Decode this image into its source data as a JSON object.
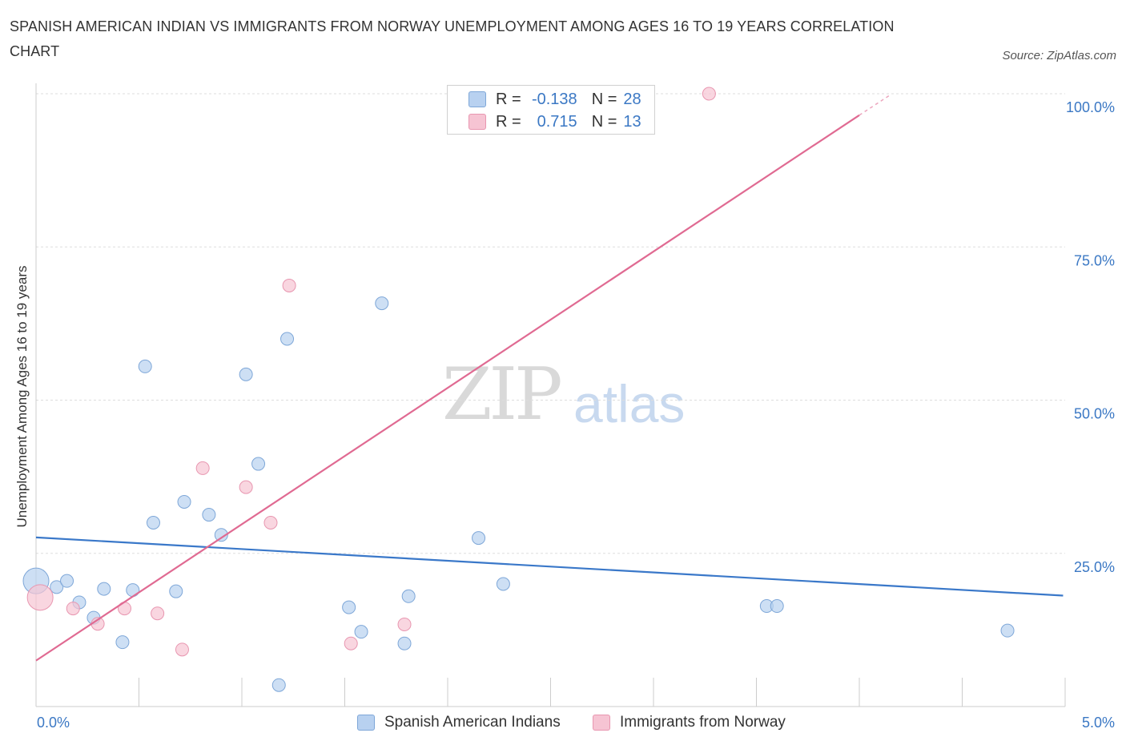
{
  "title": "SPANISH AMERICAN INDIAN VS IMMIGRANTS FROM NORWAY UNEMPLOYMENT AMONG AGES 16 TO 19 YEARS CORRELATION CHART",
  "source": "Source: ZipAtlas.com",
  "watermark": {
    "zip": "ZIP",
    "atlas": "atlas"
  },
  "legend": {
    "r_label": "R =",
    "n_label": "N =",
    "series1": {
      "r": "-0.138",
      "n": "28"
    },
    "series2": {
      "r": "0.715",
      "n": "13"
    }
  },
  "colors": {
    "blue_fill": "#b8d1f0",
    "blue_stroke": "#7ea7d8",
    "blue_line": "#3a78c9",
    "pink_fill": "#f6c4d3",
    "pink_stroke": "#e896b0",
    "pink_line": "#e06a92",
    "axis_text": "#3b78c4",
    "grid": "#dddddd"
  },
  "chart_data": {
    "type": "scatter",
    "title": "SPANISH AMERICAN INDIAN VS IMMIGRANTS FROM NORWAY UNEMPLOYMENT AMONG AGES 16 TO 19 YEARS CORRELATION CHART",
    "xlabel": "",
    "ylabel": "Unemployment Among Ages 16 to 19 years",
    "xlim": [
      0,
      5
    ],
    "ylim": [
      0,
      100
    ],
    "x_tick_labels": [
      "0.0%",
      "5.0%"
    ],
    "y_tick_labels": [
      "100.0%",
      "75.0%",
      "50.0%",
      "25.0%"
    ],
    "y_tick_values": [
      100,
      75,
      50,
      25
    ],
    "series": [
      {
        "name": "Spanish American Indians",
        "r": -0.138,
        "n": 28,
        "trend": {
          "x": [
            0,
            4.99
          ],
          "y": [
            27.6,
            18.1
          ]
        },
        "points": [
          {
            "x": 0.0,
            "y": 20.5,
            "big": true
          },
          {
            "x": 0.1,
            "y": 19.5
          },
          {
            "x": 0.15,
            "y": 20.5
          },
          {
            "x": 0.21,
            "y": 17.0
          },
          {
            "x": 0.28,
            "y": 14.5
          },
          {
            "x": 0.33,
            "y": 19.2
          },
          {
            "x": 0.42,
            "y": 10.5
          },
          {
            "x": 0.47,
            "y": 19.0
          },
          {
            "x": 0.53,
            "y": 55.5
          },
          {
            "x": 0.57,
            "y": 30.0
          },
          {
            "x": 0.68,
            "y": 18.8
          },
          {
            "x": 0.72,
            "y": 33.4
          },
          {
            "x": 0.84,
            "y": 31.3
          },
          {
            "x": 0.9,
            "y": 28.0
          },
          {
            "x": 1.02,
            "y": 54.2
          },
          {
            "x": 1.08,
            "y": 39.6
          },
          {
            "x": 1.18,
            "y": 3.5
          },
          {
            "x": 1.22,
            "y": 60.0
          },
          {
            "x": 1.52,
            "y": 16.2
          },
          {
            "x": 1.58,
            "y": 12.2
          },
          {
            "x": 1.68,
            "y": 65.8
          },
          {
            "x": 1.79,
            "y": 10.3
          },
          {
            "x": 1.81,
            "y": 18.0
          },
          {
            "x": 2.15,
            "y": 27.5
          },
          {
            "x": 2.27,
            "y": 20.0
          },
          {
            "x": 3.55,
            "y": 16.4
          },
          {
            "x": 3.6,
            "y": 16.4
          },
          {
            "x": 4.72,
            "y": 12.4
          }
        ]
      },
      {
        "name": "Immigrants from Norway",
        "r": 0.715,
        "n": 13,
        "trend": {
          "x": [
            0,
            4.0
          ],
          "y": [
            7.5,
            96.5
          ],
          "dash_x": [
            4.0,
            4.15
          ],
          "dash_y": [
            96.5,
            99.8
          ]
        },
        "points": [
          {
            "x": 0.02,
            "y": 17.8,
            "big": true
          },
          {
            "x": 0.18,
            "y": 16.0
          },
          {
            "x": 0.3,
            "y": 13.5
          },
          {
            "x": 0.43,
            "y": 16.0
          },
          {
            "x": 0.59,
            "y": 15.2
          },
          {
            "x": 0.71,
            "y": 9.3
          },
          {
            "x": 0.81,
            "y": 38.9
          },
          {
            "x": 1.02,
            "y": 35.8
          },
          {
            "x": 1.14,
            "y": 30.0
          },
          {
            "x": 1.23,
            "y": 68.7
          },
          {
            "x": 1.53,
            "y": 10.3
          },
          {
            "x": 1.79,
            "y": 13.4
          },
          {
            "x": 3.27,
            "y": 100.0
          }
        ]
      }
    ]
  }
}
